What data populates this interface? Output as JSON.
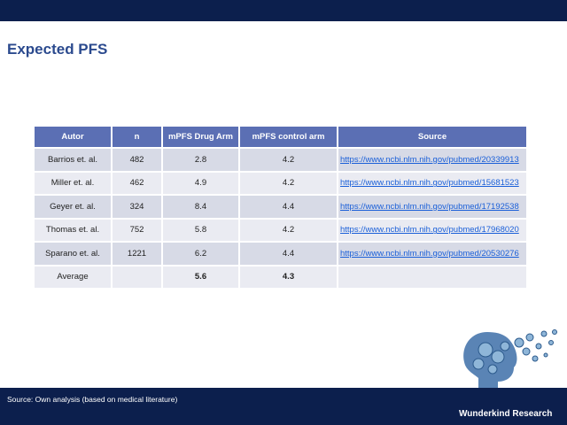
{
  "header": {
    "title": "Expected PFS"
  },
  "table": {
    "columns": [
      "Autor",
      "n",
      "mPFS Drug Arm",
      "mPFS control arm",
      "Source"
    ],
    "rows": [
      {
        "autor": "Barrios et. al.",
        "n": 482,
        "drug": 2.8,
        "control": 4.2,
        "source": "https://www.ncbi.nlm.nih.gov/pubmed/20339913"
      },
      {
        "autor": "Miller et. al.",
        "n": 462,
        "drug": 4.9,
        "control": 4.2,
        "source": "https://www.ncbi.nlm.nih.gov/pubmed/15681523"
      },
      {
        "autor": "Geyer et. al.",
        "n": 324,
        "drug": 8.4,
        "control": 4.4,
        "source": "https://www.ncbi.nlm.nih.gov/pubmed/17192538"
      },
      {
        "autor": "Thomas et. al.",
        "n": 752,
        "drug": 5.8,
        "control": 4.2,
        "source": "https://www.ncbi.nlm.nih.gov/pubmed/17968020"
      },
      {
        "autor": "Sparano et. al.",
        "n": 1221,
        "drug": 6.2,
        "control": 4.4,
        "source": "https://www.ncbi.nlm.nih.gov/pubmed/20530276"
      },
      {
        "autor": "Average",
        "drug": 5.6,
        "control": 4.3
      }
    ]
  },
  "footer": {
    "source": "Source: Own analysis (based on medical literature)",
    "brand": "Wunderkind Research"
  }
}
